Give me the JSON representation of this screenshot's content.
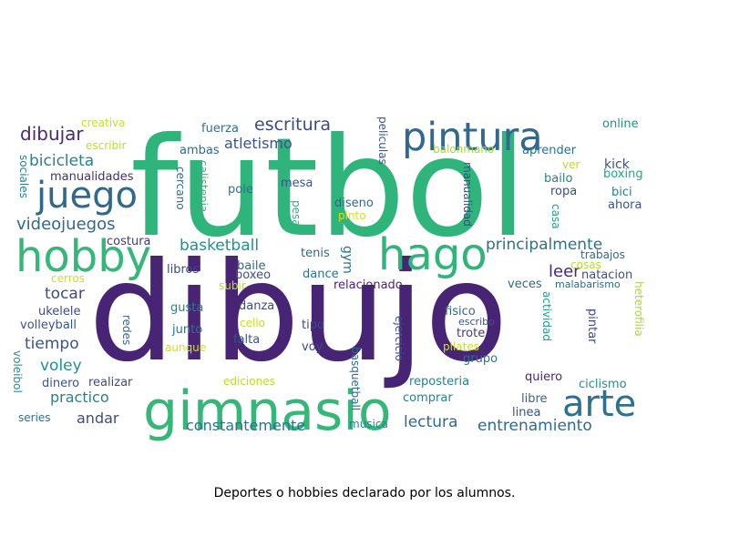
{
  "caption": "Deportes o hobbies declarado por los alumnos.",
  "words": [
    {
      "text": "futbol",
      "color": "#2fb47c"
    },
    {
      "text": "dibujo",
      "color": "#482475"
    },
    {
      "text": "gimnasio",
      "color": "#35b779"
    },
    {
      "text": "pintura",
      "color": "#31688e"
    },
    {
      "text": "hago",
      "color": "#2fb47c"
    },
    {
      "text": "juego",
      "color": "#31688e"
    },
    {
      "text": "hobby",
      "color": "#35b779"
    },
    {
      "text": "arte",
      "color": "#2c728e"
    },
    {
      "text": "dibujar",
      "color": "#482878"
    },
    {
      "text": "escritura",
      "color": "#3e4989"
    },
    {
      "text": "atletismo",
      "color": "#3b528b"
    },
    {
      "text": "videojuegos",
      "color": "#31688e"
    },
    {
      "text": "bicicleta",
      "color": "#26828e"
    },
    {
      "text": "basketball",
      "color": "#21918c"
    },
    {
      "text": "principalmente",
      "color": "#2c728e"
    },
    {
      "text": "leer",
      "color": "#482878"
    },
    {
      "text": "entrenamiento",
      "color": "#31688e"
    },
    {
      "text": "constantemente",
      "color": "#2c728e"
    },
    {
      "text": "lectura",
      "color": "#31688e"
    },
    {
      "text": "tocar",
      "color": "#3e4989"
    },
    {
      "text": "tiempo",
      "color": "#3b528b"
    },
    {
      "text": "voley",
      "color": "#21918c"
    },
    {
      "text": "practico",
      "color": "#26828e"
    },
    {
      "text": "andar",
      "color": "#3e4989"
    },
    {
      "text": "manualidades",
      "color": "#472d7b"
    },
    {
      "text": "creativa",
      "color": "#c8e020"
    },
    {
      "text": "escribir",
      "color": "#bddf26"
    },
    {
      "text": "fuerza",
      "color": "#2c728e"
    },
    {
      "text": "ambas",
      "color": "#31688e"
    },
    {
      "text": "peliculas",
      "color": "#3b528b"
    },
    {
      "text": "online",
      "color": "#21918c"
    },
    {
      "text": "balonmano",
      "color": "#a5db36"
    },
    {
      "text": "aprender",
      "color": "#2c728e"
    },
    {
      "text": "kick",
      "color": "#3b528b"
    },
    {
      "text": "boxing",
      "color": "#22a884"
    },
    {
      "text": "ver",
      "color": "#b5de2b"
    },
    {
      "text": "bailo",
      "color": "#26828e"
    },
    {
      "text": "ropa",
      "color": "#3e4989"
    },
    {
      "text": "bici",
      "color": "#26828e"
    },
    {
      "text": "ahora",
      "color": "#3b528b"
    },
    {
      "text": "sociales",
      "color": "#26828e"
    },
    {
      "text": "cercano",
      "color": "#31688e"
    },
    {
      "text": "calistenia",
      "color": "#35b779"
    },
    {
      "text": "pole",
      "color": "#2c728e"
    },
    {
      "text": "mesa",
      "color": "#3b528b"
    },
    {
      "text": "pesas",
      "color": "#2fb47c"
    },
    {
      "text": "diseno",
      "color": "#31688e"
    },
    {
      "text": "pinto",
      "color": "#d8e219"
    },
    {
      "text": "manualidad",
      "color": "#3e4989"
    },
    {
      "text": "casa",
      "color": "#1f9e89"
    },
    {
      "text": "costura",
      "color": "#443983"
    },
    {
      "text": "tenis",
      "color": "#31688e"
    },
    {
      "text": "gym",
      "color": "#2c728e"
    },
    {
      "text": "trabajos",
      "color": "#31688e"
    },
    {
      "text": "cosas",
      "color": "#b5de2b"
    },
    {
      "text": "natacion",
      "color": "#3b528b"
    },
    {
      "text": "malabarismo",
      "color": "#31688e"
    },
    {
      "text": "libros",
      "color": "#3e4989"
    },
    {
      "text": "baile",
      "color": "#31688e"
    },
    {
      "text": "boxeo",
      "color": "#3b528b"
    },
    {
      "text": "dance",
      "color": "#2c728e"
    },
    {
      "text": "cerros",
      "color": "#d2e21b"
    },
    {
      "text": "subir",
      "color": "#bddf26"
    },
    {
      "text": "relacionado",
      "color": "#482878"
    },
    {
      "text": "veces",
      "color": "#31688e"
    },
    {
      "text": "ukelele",
      "color": "#3e4989"
    },
    {
      "text": "gusta",
      "color": "#26828e"
    },
    {
      "text": "danza",
      "color": "#3e4989"
    },
    {
      "text": "fisico",
      "color": "#31688e"
    },
    {
      "text": "volleyball",
      "color": "#3b528b"
    },
    {
      "text": "cello",
      "color": "#c8e020"
    },
    {
      "text": "redes",
      "color": "#31688e"
    },
    {
      "text": "junto",
      "color": "#2c728e"
    },
    {
      "text": "tipo",
      "color": "#3e4989"
    },
    {
      "text": "ejercicio",
      "color": "#3b528b"
    },
    {
      "text": "escribo",
      "color": "#3b528b"
    },
    {
      "text": "trote",
      "color": "#443983"
    },
    {
      "text": "aunque",
      "color": "#cde11d"
    },
    {
      "text": "falta",
      "color": "#3b528b"
    },
    {
      "text": "voy",
      "color": "#3e4989"
    },
    {
      "text": "pilates",
      "color": "#c8e020"
    },
    {
      "text": "actividad",
      "color": "#1f9e89"
    },
    {
      "text": "pintar",
      "color": "#3e4989"
    },
    {
      "text": "heterofilia",
      "color": "#a5db36"
    },
    {
      "text": "voleibol",
      "color": "#21918c"
    },
    {
      "text": "dinero",
      "color": "#3b528b"
    },
    {
      "text": "realizar",
      "color": "#3e4989"
    },
    {
      "text": "ediciones",
      "color": "#bddf26"
    },
    {
      "text": "basquetball",
      "color": "#31688e"
    },
    {
      "text": "reposteria",
      "color": "#26828e"
    },
    {
      "text": "grupo",
      "color": "#2c728e"
    },
    {
      "text": "quiero",
      "color": "#482878"
    },
    {
      "text": "ciclismo",
      "color": "#21918c"
    },
    {
      "text": "comprar",
      "color": "#26828e"
    },
    {
      "text": "libre",
      "color": "#31688e"
    },
    {
      "text": "linea",
      "color": "#3b528b"
    },
    {
      "text": "series",
      "color": "#2c728e"
    },
    {
      "text": "musica",
      "color": "#26828e"
    }
  ]
}
